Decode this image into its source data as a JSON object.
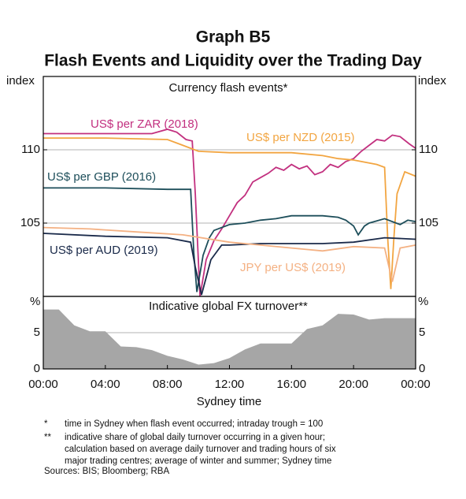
{
  "title": "Graph B5",
  "subtitle": "Flash Events and Liquidity over the Trading Day",
  "chart_data": [
    {
      "type": "line",
      "title": "Currency flash events*",
      "ylabel": "index",
      "xlim": [
        0,
        24
      ],
      "ylim": [
        100,
        115
      ],
      "yticks": [
        105,
        110
      ],
      "grid": true,
      "series": [
        {
          "name": "US$ per ZAR (2018)",
          "color": "#c2307f",
          "x": [
            0,
            4,
            7,
            8,
            8.6,
            9.2,
            9.6,
            9.8,
            10.1,
            10.5,
            11,
            11.5,
            12,
            12.5,
            13,
            13.5,
            14,
            14.5,
            15,
            15.5,
            16,
            16.5,
            17,
            17.5,
            18,
            18.5,
            19,
            19.5,
            20,
            20.5,
            21,
            21.5,
            22,
            22.5,
            23,
            23.6,
            24
          ],
          "values": [
            111.1,
            111.1,
            111.1,
            111.4,
            111.2,
            110.7,
            110.6,
            107,
            100,
            102.5,
            103.8,
            104.6,
            105.5,
            106.4,
            106.9,
            107.8,
            108.1,
            108.4,
            108.8,
            108.6,
            109,
            108.7,
            108.9,
            108.3,
            108.5,
            109,
            108.8,
            109.2,
            109.4,
            109.9,
            110.3,
            110.7,
            110.6,
            111,
            110.9,
            110.4,
            110.1
          ]
        },
        {
          "name": "US$ per NZD (2015)",
          "color": "#f2a541",
          "x": [
            0,
            4,
            8,
            9,
            10,
            12,
            14,
            16,
            18,
            19,
            20,
            21,
            21.5,
            22,
            22.2,
            22.4,
            22.6,
            22.8,
            23.3,
            24
          ],
          "values": [
            110.8,
            110.8,
            110.7,
            110.3,
            109.9,
            109.8,
            109.8,
            109.8,
            109.6,
            109.4,
            109.3,
            109.1,
            109,
            108.8,
            104,
            100.5,
            104,
            107,
            108.5,
            108.2
          ]
        },
        {
          "name": "US$ per GBP (2016)",
          "color": "#1d4e5a",
          "x": [
            0,
            4,
            8,
            9.5,
            9.7,
            9.9,
            10.3,
            10.7,
            11,
            12,
            13,
            14,
            15,
            16,
            17,
            18,
            19,
            19.5,
            20,
            20.3,
            20.7,
            21,
            22,
            23,
            23.5,
            24
          ],
          "values": [
            107.4,
            107.4,
            107.3,
            107.3,
            103,
            100.3,
            102.8,
            104,
            104.5,
            104.9,
            105,
            105.2,
            105.3,
            105.5,
            105.5,
            105.5,
            105.4,
            105.2,
            104.8,
            104.2,
            104.8,
            105,
            105.3,
            104.9,
            105.2,
            105.1
          ]
        },
        {
          "name": "US$ per AUD (2019)",
          "color": "#1a2a4a",
          "x": [
            0,
            4,
            8,
            9.5,
            9.8,
            10.2,
            10.8,
            11.5,
            12,
            14,
            16,
            18,
            20,
            22,
            24
          ],
          "values": [
            104.3,
            104.1,
            104,
            103.7,
            102,
            100.1,
            102.5,
            103.5,
            103.5,
            103.6,
            103.6,
            103.6,
            103.7,
            104,
            103.9
          ]
        },
        {
          "name": "JPY per US$ (2019)",
          "color": "#f4b183",
          "x": [
            0,
            3,
            6,
            9,
            12,
            14,
            16,
            18,
            20,
            22,
            22.5,
            23,
            24
          ],
          "values": [
            104.7,
            104.6,
            104.4,
            104.2,
            103.7,
            103.5,
            103.3,
            103.1,
            103.4,
            103.3,
            101,
            103.3,
            103.5
          ]
        }
      ]
    },
    {
      "type": "area",
      "title": "Indicative global FX turnover**",
      "ylabel": "%",
      "xlabel": "Sydney time",
      "color": "#a6a6a6",
      "xlim": [
        0,
        24
      ],
      "ylim": [
        0,
        10
      ],
      "yticks": [
        0,
        5
      ],
      "grid": true,
      "xticks": [
        {
          "value": 0,
          "label": "00:00"
        },
        {
          "value": 4,
          "label": "04:00"
        },
        {
          "value": 8,
          "label": "08:00"
        },
        {
          "value": 12,
          "label": "12:00"
        },
        {
          "value": 16,
          "label": "16:00"
        },
        {
          "value": 20,
          "label": "20:00"
        },
        {
          "value": 24,
          "label": "00:00"
        }
      ],
      "x": [
        0,
        1,
        2,
        3,
        4,
        5,
        6,
        7,
        8,
        9,
        10,
        11,
        12,
        13,
        14,
        15,
        16,
        17,
        18,
        19,
        20,
        21,
        22,
        23,
        24
      ],
      "values": [
        8.2,
        8.2,
        6,
        5.2,
        5.2,
        3.1,
        3,
        2.6,
        1.8,
        1.3,
        0.6,
        0.8,
        1.5,
        2.7,
        3.5,
        3.5,
        3.5,
        5.5,
        6,
        7.6,
        7.5,
        6.8,
        7,
        7,
        7
      ]
    }
  ],
  "footnotes": [
    {
      "mark": "*",
      "lines": [
        "time in Sydney when flash event occurred; intraday trough = 100"
      ]
    },
    {
      "mark": "**",
      "lines": [
        "indicative share of global daily turnover occurring in a given hour;",
        "calculation based on average daily turnover and trading hours of six",
        "major trading centres; average of winter and summer; Sydney time"
      ]
    }
  ],
  "source": "Sources: BIS; Bloomberg; RBA"
}
